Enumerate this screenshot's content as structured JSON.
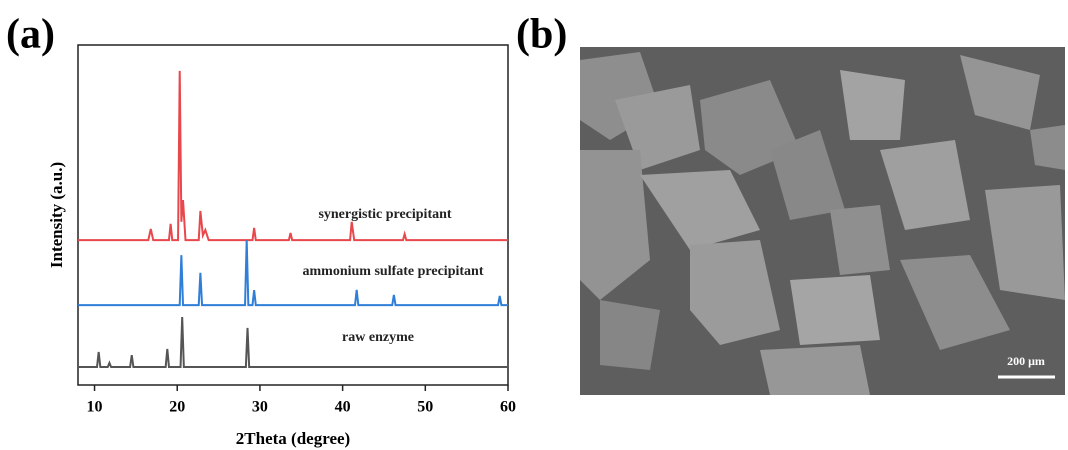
{
  "panels": {
    "a": "(a)",
    "b": "(b)"
  },
  "chart_data": {
    "type": "line",
    "x_label": "2Theta (degree)",
    "y_label": "Intensity (a.u.)",
    "xlim": [
      8,
      60
    ],
    "xticks": [
      10,
      20,
      30,
      40,
      50,
      60
    ],
    "ylim": [
      0,
      100
    ],
    "series": [
      {
        "name": "synergistic precipitant",
        "color": "#e8474c",
        "x": [
          8,
          16.5,
          16.8,
          17.1,
          19.0,
          19.2,
          19.4,
          20.1,
          20.3,
          20.5,
          20.7,
          21.0,
          22.6,
          22.8,
          23.1,
          23.4,
          23.8,
          29.1,
          29.3,
          29.5,
          33.5,
          33.7,
          33.9,
          40.9,
          41.1,
          41.4,
          47.3,
          47.5,
          47.7,
          60
        ],
        "values": [
          42.6,
          42.6,
          45.9,
          42.6,
          42.6,
          47.4,
          42.6,
          42.6,
          92.4,
          48,
          54.4,
          42.6,
          42.6,
          51.2,
          44,
          45.6,
          42.6,
          42.6,
          46.2,
          42.6,
          42.6,
          44.7,
          42.6,
          42.6,
          48,
          42.6,
          42.6,
          44.4,
          42.6,
          42.6
        ]
      },
      {
        "name": "ammonium sulfate precipitant",
        "color": "#2f7ed8",
        "x": [
          8,
          20.3,
          20.5,
          20.7,
          22.6,
          22.8,
          23.0,
          28.2,
          28.4,
          28.6,
          29.1,
          29.3,
          29.5,
          41.5,
          41.7,
          41.9,
          46.0,
          46.2,
          46.4,
          58.8,
          59,
          59.2,
          60
        ],
        "values": [
          23.5,
          23.5,
          38.2,
          23.5,
          23.5,
          33,
          23.5,
          23.5,
          42.6,
          23.5,
          23.5,
          27.9,
          23.5,
          23.5,
          28,
          23.5,
          23.5,
          26.5,
          23.5,
          23.5,
          26.2,
          23.5,
          23.5
        ]
      },
      {
        "name": "raw enzyme",
        "color": "#555555",
        "x": [
          8,
          10.3,
          10.5,
          10.7,
          11.6,
          11.8,
          12.0,
          14.3,
          14.5,
          14.7,
          18.6,
          18.8,
          19.0,
          20.4,
          20.6,
          20.8,
          28.3,
          28.5,
          28.7,
          60
        ],
        "values": [
          5.3,
          5.3,
          9.7,
          5.3,
          5.3,
          6.5,
          5.3,
          5.3,
          8.8,
          5.3,
          5.3,
          10.6,
          5.3,
          5.3,
          20,
          5.3,
          5.3,
          16.8,
          5.3,
          5.3
        ]
      }
    ]
  },
  "image": {
    "scale_bar": "200 μm"
  }
}
